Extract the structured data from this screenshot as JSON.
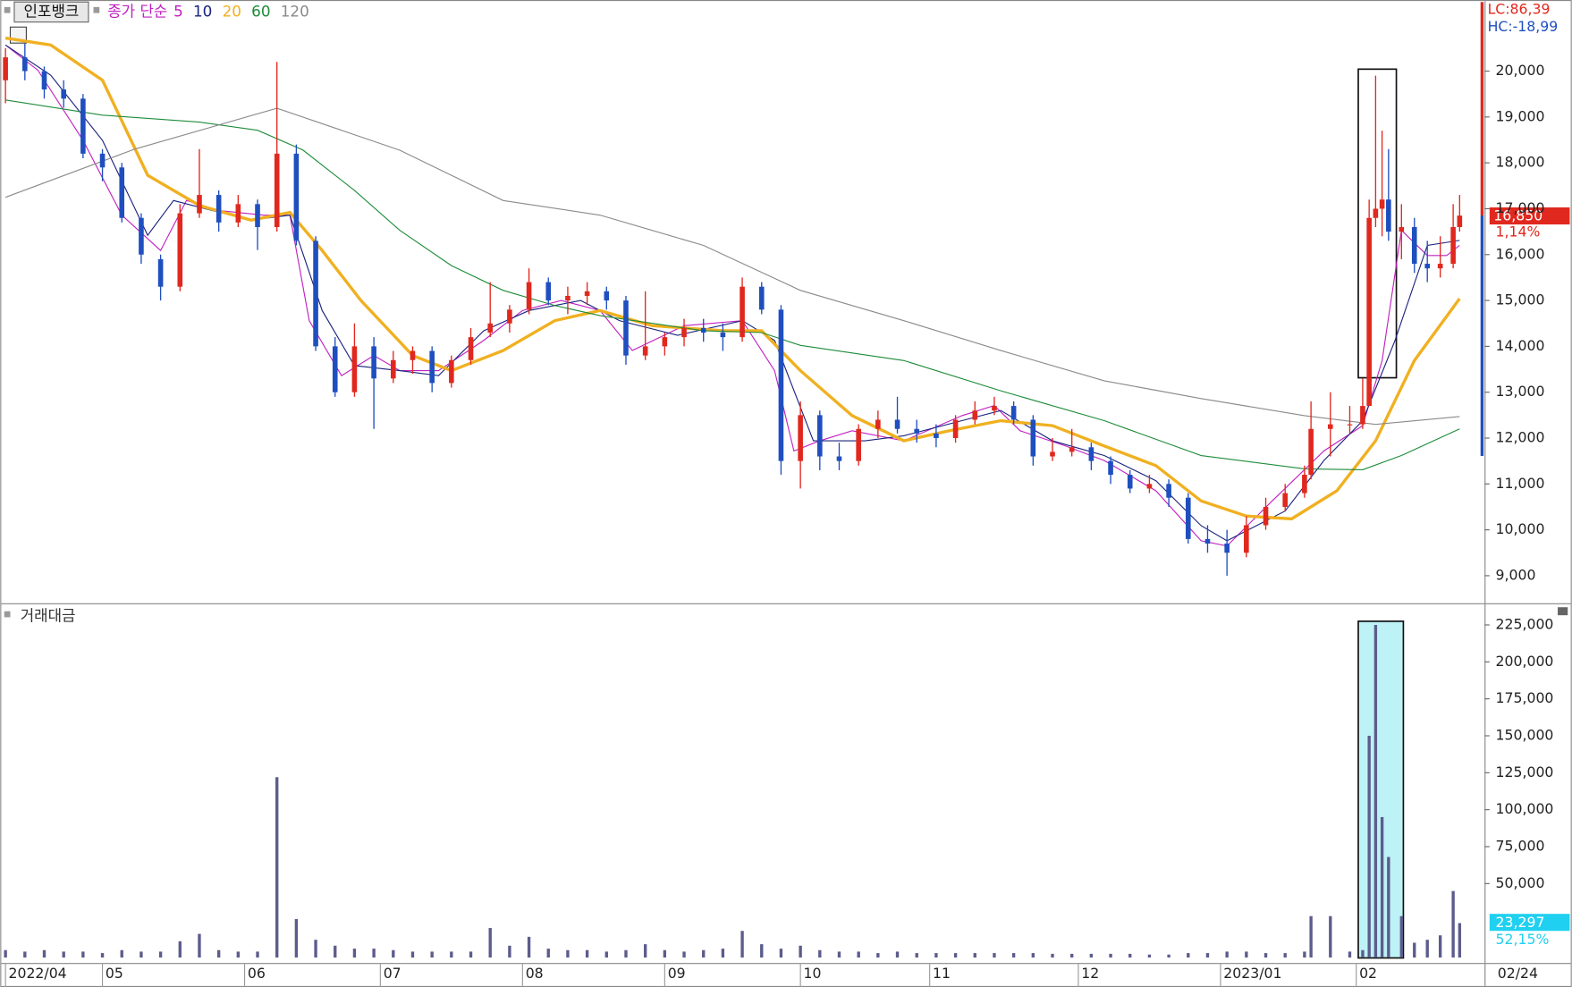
{
  "chart_data": [
    {
      "type": "candlestick",
      "title": "인포뱅크",
      "subtitle": "종가 단순",
      "x": [
        0,
        3,
        6,
        9,
        12,
        15,
        18,
        21,
        24,
        27,
        30,
        33,
        36,
        39,
        42,
        45,
        48,
        51,
        54,
        57,
        60,
        63,
        66,
        69,
        72,
        75,
        78,
        81,
        84,
        87,
        90,
        93,
        96,
        99,
        102,
        105,
        108,
        111,
        114,
        117,
        120,
        123,
        126,
        129,
        132,
        135,
        138,
        141,
        144,
        147,
        150,
        153,
        156,
        159,
        162,
        165,
        168,
        171,
        174,
        177,
        180,
        183,
        186,
        189,
        192,
        195,
        198,
        201,
        202,
        205,
        208,
        210,
        211,
        212,
        213,
        214,
        216,
        218,
        220,
        222,
        224,
        225
      ],
      "open": [
        19800,
        20300,
        20000,
        19600,
        19400,
        18200,
        17900,
        16800,
        15900,
        15300,
        16900,
        17300,
        16700,
        17100,
        16600,
        18200,
        16300,
        14000,
        13000,
        14000,
        13300,
        13700,
        13900,
        13200,
        13700,
        14300,
        14500,
        14800,
        15400,
        15000,
        15100,
        15200,
        15000,
        13800,
        14000,
        14200,
        14400,
        14300,
        14200,
        15300,
        14800,
        11500,
        12500,
        11600,
        11500,
        12200,
        12400,
        12200,
        12100,
        12000,
        12400,
        12600,
        12700,
        12400,
        11600,
        11700,
        11800,
        11500,
        11200,
        10900,
        11000,
        10700,
        9800,
        9700,
        9500,
        10100,
        10500,
        10800,
        11200,
        12200,
        12300,
        12300,
        12700,
        16800,
        17000,
        17200,
        16500,
        16600,
        15800,
        15700,
        15800,
        16600
      ],
      "high": [
        20500,
        20600,
        20100,
        19800,
        19500,
        18300,
        18000,
        16900,
        16000,
        17100,
        18300,
        17400,
        17300,
        17200,
        20200,
        18400,
        16400,
        14200,
        14500,
        14200,
        13900,
        14000,
        14000,
        13800,
        14400,
        15400,
        14900,
        15700,
        15500,
        15300,
        15400,
        15300,
        15100,
        15200,
        14300,
        14600,
        14600,
        14500,
        15500,
        15400,
        14900,
        12800,
        12600,
        11900,
        12300,
        12600,
        12900,
        12400,
        12300,
        12500,
        12800,
        12900,
        12800,
        12500,
        12000,
        12200,
        11900,
        11600,
        11300,
        11200,
        11100,
        10800,
        10100,
        10000,
        10300,
        10700,
        11000,
        11400,
        12800,
        13000,
        12700,
        13300,
        17200,
        19900,
        18700,
        18300,
        17100,
        16800,
        16300,
        16400,
        17100,
        17300
      ],
      "low": [
        19300,
        19800,
        19400,
        19200,
        18100,
        17600,
        16700,
        15800,
        15000,
        15200,
        16800,
        16500,
        16600,
        16100,
        16500,
        16200,
        13900,
        12900,
        12900,
        12200,
        13200,
        13400,
        13000,
        13100,
        13600,
        14200,
        14300,
        14700,
        14900,
        14700,
        14900,
        14800,
        13600,
        13700,
        13800,
        14000,
        14100,
        13900,
        14100,
        14700,
        11200,
        10900,
        11300,
        11300,
        11400,
        12000,
        12100,
        11900,
        11800,
        11900,
        12300,
        12500,
        12300,
        11400,
        11500,
        11600,
        11300,
        11000,
        10800,
        10800,
        10500,
        9700,
        9500,
        9000,
        9400,
        10000,
        10400,
        10700,
        11100,
        11600,
        12100,
        12200,
        12700,
        16600,
        16400,
        16300,
        15900,
        15600,
        15400,
        15500,
        15700,
        16500
      ],
      "close": [
        20300,
        20000,
        19600,
        19400,
        18200,
        17900,
        16800,
        16000,
        15300,
        16900,
        17300,
        16700,
        17100,
        16600,
        18200,
        16300,
        14000,
        13000,
        14000,
        13300,
        13700,
        13900,
        13200,
        13700,
        14200,
        14500,
        14800,
        15400,
        15000,
        15100,
        15200,
        15000,
        13800,
        14000,
        14200,
        14400,
        14300,
        14200,
        15300,
        14800,
        11500,
        12500,
        11600,
        11500,
        12200,
        12400,
        12200,
        12100,
        12000,
        12400,
        12600,
        12700,
        12400,
        11600,
        11700,
        11800,
        11500,
        11200,
        10900,
        11000,
        10700,
        9800,
        9700,
        9500,
        10100,
        10500,
        10800,
        11200,
        12200,
        12300,
        12300,
        12700,
        16800,
        17000,
        17200,
        16500,
        16600,
        15800,
        15700,
        15800,
        16600,
        16850
      ],
      "up_color": "#e0281e",
      "down_color": "#1f4fbf",
      "series": [
        {
          "name": "5",
          "color": "#c020c0",
          "width": 1,
          "x": [
            0,
            5,
            12,
            18,
            24,
            28,
            33,
            40,
            44,
            47,
            52,
            57,
            61,
            67,
            74,
            80,
            86,
            92,
            97,
            105,
            114,
            119,
            122,
            126,
            131,
            139,
            148,
            153,
            157,
            164,
            170,
            178,
            185,
            189,
            196,
            204,
            210,
            213,
            216,
            220,
            223,
            225
          ],
          "values": [
            20570,
            20020,
            18490,
            16860,
            16090,
            17180,
            16960,
            16860,
            16860,
            14560,
            13360,
            13800,
            13470,
            13470,
            14130,
            14780,
            15000,
            14780,
            13910,
            14450,
            14560,
            13470,
            11720,
            11940,
            12160,
            11940,
            12490,
            12710,
            12160,
            11830,
            11510,
            10850,
            9760,
            9650,
            10630,
            11720,
            12270,
            13690,
            16530,
            15980,
            15980,
            16200
          ]
        },
        {
          "name": "10",
          "color": "#1a237e",
          "width": 1,
          "x": [
            0,
            7,
            15,
            22,
            26,
            32,
            38,
            44,
            49,
            54,
            61,
            67,
            74,
            81,
            89,
            95,
            104,
            114,
            119,
            125,
            133,
            139,
            148,
            154,
            162,
            170,
            178,
            185,
            189,
            198,
            204,
            210,
            215,
            220,
            225
          ],
          "values": [
            20570,
            19910,
            18490,
            16420,
            17180,
            16960,
            16750,
            16860,
            14780,
            13580,
            13470,
            13360,
            14340,
            14780,
            15000,
            14560,
            14240,
            14560,
            14130,
            11940,
            11940,
            12050,
            12380,
            12600,
            11940,
            11620,
            11070,
            10090,
            9760,
            10410,
            11510,
            12380,
            14130,
            16200,
            16310
          ]
        },
        {
          "name": "20",
          "color": "#f0b020",
          "width": 3,
          "x": [
            0,
            7,
            15,
            22,
            30,
            38,
            44,
            49,
            55,
            63,
            69,
            77,
            85,
            92,
            100,
            111,
            117,
            123,
            131,
            139,
            146,
            154,
            162,
            170,
            178,
            185,
            192,
            199,
            206,
            212,
            218,
            225
          ],
          "values": [
            20720,
            20570,
            19800,
            17730,
            17070,
            16750,
            16920,
            16090,
            15000,
            13800,
            13470,
            13910,
            14560,
            14780,
            14450,
            14340,
            14340,
            13470,
            12490,
            11940,
            12160,
            12380,
            12270,
            11830,
            11400,
            10630,
            10300,
            10240,
            10850,
            11940,
            13690,
            15040
          ]
        },
        {
          "name": "60",
          "color": "#1e8c3a",
          "width": 1,
          "x": [
            0,
            15,
            30,
            39,
            46,
            54,
            61,
            69,
            77,
            85,
            92,
            108,
            117,
            123,
            139,
            154,
            170,
            185,
            201,
            210,
            216,
            225
          ],
          "values": [
            19370,
            19040,
            18890,
            18710,
            18280,
            17400,
            16530,
            15760,
            15220,
            14890,
            14670,
            14340,
            14300,
            14020,
            13690,
            13030,
            12380,
            11620,
            11330,
            11310,
            11620,
            12200
          ]
        },
        {
          "name": "120",
          "color": "#8a8a8a",
          "width": 1,
          "x": [
            0,
            20,
            42,
            61,
            77,
            92,
            108,
            123,
            139,
            154,
            170,
            185,
            201,
            212,
            225
          ],
          "values": [
            17250,
            18300,
            19190,
            18275,
            17180,
            16860,
            16200,
            15220,
            14560,
            13910,
            13250,
            12860,
            12490,
            12300,
            12470
          ]
        }
      ],
      "xlim": [
        -0.5,
        228.7
      ],
      "ylim": [
        8400,
        21550
      ],
      "yticks": [
        {
          "value": 9000,
          "label": "9,000"
        },
        {
          "value": 10000,
          "label": "10,000"
        },
        {
          "value": 11000,
          "label": "11,000"
        },
        {
          "value": 12000,
          "label": "12,000"
        },
        {
          "value": 13000,
          "label": "13,000"
        },
        {
          "value": 14000,
          "label": "14,000"
        },
        {
          "value": 15000,
          "label": "15,000"
        },
        {
          "value": 16000,
          "label": "16,000"
        },
        {
          "value": 17000,
          "label": "17,000"
        },
        {
          "value": 18000,
          "label": "18,000"
        },
        {
          "value": 19000,
          "label": "19,000"
        },
        {
          "value": 20000,
          "label": "20,000"
        }
      ],
      "annotations": {
        "lc": "LC:86,39",
        "hc": "HC:-18,99",
        "price": "16,850",
        "change": "1,14%"
      }
    },
    {
      "type": "bar",
      "title": "거래대금",
      "color": "#5c5c8c",
      "x": [
        0,
        3,
        6,
        9,
        12,
        15,
        18,
        21,
        24,
        27,
        30,
        33,
        36,
        39,
        42,
        45,
        48,
        51,
        54,
        57,
        60,
        63,
        66,
        69,
        72,
        75,
        78,
        81,
        84,
        87,
        90,
        93,
        96,
        99,
        102,
        105,
        108,
        111,
        114,
        117,
        120,
        123,
        126,
        129,
        132,
        135,
        138,
        141,
        144,
        147,
        150,
        153,
        156,
        159,
        162,
        165,
        168,
        171,
        174,
        177,
        180,
        183,
        186,
        189,
        192,
        195,
        198,
        201,
        202,
        205,
        208,
        210,
        211,
        212,
        213,
        214,
        216,
        218,
        220,
        222,
        224,
        225
      ],
      "values": [
        5000,
        4000,
        5000,
        4000,
        4000,
        3000,
        5000,
        4000,
        4000,
        11000,
        16000,
        5000,
        4000,
        4000,
        122000,
        26000,
        12000,
        8000,
        6000,
        6000,
        5000,
        4000,
        4000,
        4000,
        4000,
        20000,
        8000,
        14000,
        6000,
        5000,
        5000,
        4000,
        5000,
        9000,
        5000,
        4000,
        5000,
        6000,
        18000,
        9000,
        6000,
        8000,
        5000,
        4000,
        4000,
        3000,
        4000,
        3000,
        3000,
        3000,
        3000,
        3000,
        3000,
        3000,
        2500,
        2500,
        2500,
        2500,
        2500,
        2000,
        2000,
        3000,
        3000,
        4000,
        4000,
        3000,
        3000,
        4000,
        28000,
        28000,
        4000,
        5000,
        150000,
        225000,
        95000,
        68000,
        28000,
        10000,
        12000,
        15000,
        45000,
        23297
      ],
      "xlim": [
        -0.5,
        228.7
      ],
      "ylim": [
        -3000,
        239000
      ],
      "yticks": [
        {
          "value": 50000,
          "label": "50,000"
        },
        {
          "value": 75000,
          "label": "75,000"
        },
        {
          "value": 100000,
          "label": "100,000"
        },
        {
          "value": 125000,
          "label": "125,000"
        },
        {
          "value": 150000,
          "label": "150,000"
        },
        {
          "value": 175000,
          "label": "175,000"
        },
        {
          "value": 200000,
          "label": "200,000"
        },
        {
          "value": 225000,
          "label": "225,000"
        }
      ],
      "xticks": [
        {
          "value": 0,
          "label": "2022/04"
        },
        {
          "value": 15,
          "label": "05"
        },
        {
          "value": 37,
          "label": "06"
        },
        {
          "value": 58,
          "label": "07"
        },
        {
          "value": 80,
          "label": "08"
        },
        {
          "value": 102,
          "label": "09"
        },
        {
          "value": 123,
          "label": "10"
        },
        {
          "value": 143,
          "label": "11"
        },
        {
          "value": 166,
          "label": "12"
        },
        {
          "value": 188,
          "label": "2023/01"
        },
        {
          "value": 209,
          "label": "02"
        }
      ],
      "last_date": "02/24",
      "annotations": {
        "value": "23,297",
        "ratio": "52,15%"
      }
    }
  ]
}
